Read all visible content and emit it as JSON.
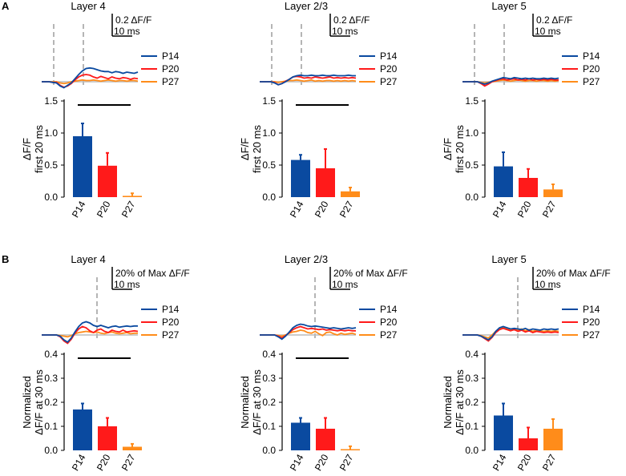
{
  "colors": {
    "P14": "#0a4aa0",
    "P20": "#ff1a1a",
    "P27": "#ff8c1a",
    "baseline": "#bbbbbb",
    "dashed": "#b5b5b5"
  },
  "chart_data": [
    {
      "panel": "A",
      "scale_bar": {
        "amplitude": "0.2 ΔF/F",
        "time": "10 ms"
      },
      "ylabel": [
        "ΔF/F",
        "first 20 ms"
      ],
      "yticks": [
        "0.0",
        "0.5",
        "1.0",
        "1.5"
      ],
      "subplots": [
        {
          "title": "Layer 4",
          "type": "bar",
          "categories": [
            "P14",
            "P20",
            "P27"
          ],
          "values": [
            0.95,
            0.49,
            0.02
          ],
          "errors": [
            0.2,
            0.2,
            0.04
          ],
          "ylim": [
            0,
            1.5
          ],
          "significance": true,
          "legend": [
            "P14",
            "P20",
            "P27"
          ],
          "traces": {
            "P14": [
              0,
              0,
              0,
              -0.01,
              -0.02,
              -0.07,
              -0.1,
              -0.06,
              -0.02,
              0.05,
              0.12,
              0.18,
              0.22,
              0.23,
              0.22,
              0.2,
              0.18,
              0.17,
              0.17,
              0.15,
              0.17,
              0.16,
              0.14,
              0.16,
              0.15,
              0.14,
              0.16
            ],
            "P20": [
              0,
              0,
              0,
              -0.01,
              -0.01,
              -0.06,
              -0.09,
              -0.07,
              -0.03,
              0.03,
              0.08,
              0.11,
              0.12,
              0.11,
              0.08,
              0.06,
              0.09,
              0.07,
              0.05,
              0.08,
              0.06,
              0.05,
              0.07,
              0.06,
              0.04,
              0.06,
              0.05
            ],
            "P27": [
              0,
              0,
              0,
              0,
              0,
              -0.02,
              -0.03,
              -0.02,
              0,
              0.01,
              0.02,
              0.03,
              0.02,
              0.02,
              0.03,
              0.02,
              0.01,
              0.02,
              0.03,
              0.02,
              0.01,
              0.02,
              0.02,
              0.01,
              0.02,
              0.02,
              0.01
            ]
          }
        },
        {
          "title": "Layer 2/3",
          "type": "bar",
          "categories": [
            "P14",
            "P20",
            "P27"
          ],
          "values": [
            0.58,
            0.45,
            0.09
          ],
          "errors": [
            0.08,
            0.3,
            0.06
          ],
          "ylim": [
            0,
            1.5
          ],
          "significance": true,
          "legend": [
            "P14",
            "P20",
            "P27"
          ],
          "traces": {
            "P14": [
              0,
              0,
              0,
              0,
              -0.02,
              -0.05,
              -0.03,
              0,
              0.04,
              0.08,
              0.1,
              0.11,
              0.1,
              0.1,
              0.11,
              0.1,
              0.1,
              0.11,
              0.1,
              0.1,
              0.11,
              0.1,
              0.1,
              0.1,
              0.11,
              0.1,
              0.1
            ],
            "P20": [
              0,
              0,
              0,
              0,
              -0.01,
              -0.05,
              -0.03,
              0.01,
              0.04,
              0.08,
              0.09,
              0.08,
              0.06,
              0.07,
              0.06,
              0.08,
              0.07,
              0.06,
              0.07,
              0.08,
              0.06,
              0.07,
              0.06,
              0.07,
              0.06,
              0.07,
              0.06
            ],
            "P27": [
              0,
              0,
              0,
              0,
              0,
              -0.01,
              0,
              0.01,
              0.02,
              0.02,
              0.03,
              0.02,
              0.01,
              0.02,
              0.03,
              0.01,
              0.02,
              0.01,
              0.02,
              0.02,
              0.01,
              0.02,
              0.01,
              0.02,
              0.01,
              0.02,
              0.01
            ]
          }
        },
        {
          "title": "Layer 5",
          "type": "bar",
          "categories": [
            "P14",
            "P20",
            "P27"
          ],
          "values": [
            0.48,
            0.3,
            0.12
          ],
          "errors": [
            0.22,
            0.14,
            0.08
          ],
          "ylim": [
            0,
            1.5
          ],
          "significance": false,
          "legend": [
            "P14",
            "P20",
            "P27"
          ],
          "traces": {
            "P14": [
              0,
              0,
              0,
              0,
              0,
              -0.02,
              -0.04,
              -0.02,
              0.01,
              0.03,
              0.05,
              0.07,
              0.06,
              0.05,
              0.07,
              0.06,
              0.05,
              0.06,
              0.05,
              0.06,
              0.05,
              0.05,
              0.06,
              0.05,
              0.06,
              0.05,
              0.06
            ],
            "P20": [
              0,
              0,
              0,
              0,
              0,
              -0.03,
              -0.07,
              -0.04,
              0,
              0.02,
              0.04,
              0.05,
              0.03,
              0.04,
              0.05,
              0.03,
              0.04,
              0.03,
              0.05,
              0.03,
              0.04,
              0.03,
              0.04,
              0.03,
              0.04,
              0.03,
              0.03
            ],
            "P27": [
              0,
              0,
              0,
              0,
              0,
              -0.01,
              -0.02,
              -0.01,
              0,
              0.01,
              0.02,
              0.03,
              0.02,
              0.01,
              0.02,
              0.03,
              0.02,
              0.01,
              0.02,
              0.02,
              0.01,
              0.02,
              0.02,
              0.01,
              0.02,
              0.01,
              0.02
            ]
          }
        }
      ]
    },
    {
      "panel": "B",
      "scale_bar": {
        "amplitude": "20% of Max ΔF/F",
        "time": "10 ms"
      },
      "ylabel": [
        "Normalized",
        "ΔF/F at 30 ms"
      ],
      "yticks": [
        "0.0",
        "0.1",
        "0.2",
        "0.3",
        "0.4"
      ],
      "subplots": [
        {
          "title": "Layer 4",
          "type": "bar",
          "categories": [
            "P14",
            "P20",
            "P27"
          ],
          "values": [
            0.17,
            0.1,
            0.015
          ],
          "errors": [
            0.025,
            0.035,
            0.012
          ],
          "ylim": [
            0,
            0.4
          ],
          "significance": true,
          "legend": [
            "P14",
            "P20",
            "P27"
          ],
          "traces": {
            "P14": [
              0,
              0,
              0,
              0,
              0,
              -0.02,
              -0.08,
              -0.12,
              -0.05,
              0.05,
              0.14,
              0.2,
              0.22,
              0.2,
              0.16,
              0.14,
              0.16,
              0.14,
              0.12,
              0.14,
              0.15,
              0.13,
              0.14,
              0.15,
              0.14,
              0.15,
              0.15
            ],
            "P20": [
              0,
              0,
              0,
              0,
              0,
              -0.03,
              -0.1,
              -0.14,
              -0.07,
              0.03,
              0.1,
              0.14,
              0.12,
              0.07,
              0.04,
              0.08,
              0.1,
              0.06,
              0.04,
              0.08,
              0.06,
              0.05,
              0.08,
              0.05,
              0.06,
              0.07,
              0.06
            ],
            "P27": [
              0,
              0,
              0,
              0,
              0,
              -0.01,
              -0.02,
              -0.03,
              -0.01,
              0.02,
              0.04,
              0.05,
              0.06,
              0.05,
              0.04,
              0.05,
              0.03,
              0.02,
              0.04,
              0.05,
              0.03,
              0.02,
              0.03,
              0.04,
              0.02,
              0.03,
              0.03
            ]
          }
        },
        {
          "title": "Layer 2/3",
          "type": "bar",
          "categories": [
            "P14",
            "P20",
            "P27"
          ],
          "values": [
            0.115,
            0.09,
            0.005
          ],
          "errors": [
            0.02,
            0.045,
            0.012
          ],
          "ylim": [
            0,
            0.4
          ],
          "significance": true,
          "legend": [
            "P14",
            "P20",
            "P27"
          ],
          "traces": {
            "P14": [
              0,
              0,
              0,
              0,
              0,
              -0.03,
              -0.07,
              -0.02,
              0.05,
              0.12,
              0.16,
              0.18,
              0.17,
              0.15,
              0.14,
              0.15,
              0.14,
              0.13,
              0.12,
              0.11,
              0.12,
              0.11,
              0.1,
              0.11,
              0.12,
              0.11,
              0.12
            ],
            "P20": [
              0,
              0,
              0,
              0,
              0,
              -0.02,
              -0.05,
              -0.01,
              0.04,
              0.09,
              0.12,
              0.14,
              0.12,
              0.1,
              0.11,
              0.1,
              0.09,
              0.1,
              0.08,
              0.09,
              0.08,
              0.07,
              0.08,
              0.07,
              0.08,
              0.07,
              0.07
            ],
            "P27": [
              0,
              0,
              0,
              0,
              0,
              -0.01,
              -0.02,
              0,
              0.03,
              0.05,
              0.06,
              0.08,
              0.07,
              0.04,
              0.03,
              0.06,
              0.02,
              -0.01,
              0.04,
              0.05,
              0.02,
              0,
              0.03,
              0.01,
              0.02,
              0.03,
              0.01
            ]
          }
        },
        {
          "title": "Layer 5",
          "type": "bar",
          "categories": [
            "P14",
            "P20",
            "P27"
          ],
          "values": [
            0.145,
            0.05,
            0.09
          ],
          "errors": [
            0.05,
            0.045,
            0.04
          ],
          "ylim": [
            0,
            0.4
          ],
          "significance": false,
          "legend": [
            "P14",
            "P20",
            "P27"
          ],
          "traces": {
            "P14": [
              0,
              0,
              0,
              0,
              0,
              -0.02,
              -0.05,
              -0.08,
              -0.03,
              0.06,
              0.12,
              0.14,
              0.12,
              0.1,
              0.11,
              0.1,
              0.09,
              0.11,
              0.08,
              0.1,
              0.09,
              0.08,
              0.1,
              0.09,
              0.1,
              0.09,
              0.1
            ],
            "P20": [
              0,
              0,
              0,
              0,
              0,
              -0.02,
              -0.06,
              -0.1,
              -0.04,
              0.04,
              0.09,
              0.11,
              0.09,
              0.07,
              0.09,
              0.06,
              0.08,
              0.05,
              0.07,
              0.04,
              0.06,
              0.05,
              0.04,
              0.05,
              0.04,
              0.05,
              0.04
            ],
            "P27": [
              0,
              0,
              0,
              0,
              0,
              -0.01,
              -0.03,
              -0.05,
              0,
              0.06,
              0.1,
              0.12,
              0.1,
              0.09,
              0.11,
              0.08,
              0.1,
              0.07,
              0.09,
              0.06,
              0.08,
              0.07,
              0.06,
              0.07,
              0.06,
              0.07,
              0.06
            ]
          }
        }
      ]
    }
  ]
}
